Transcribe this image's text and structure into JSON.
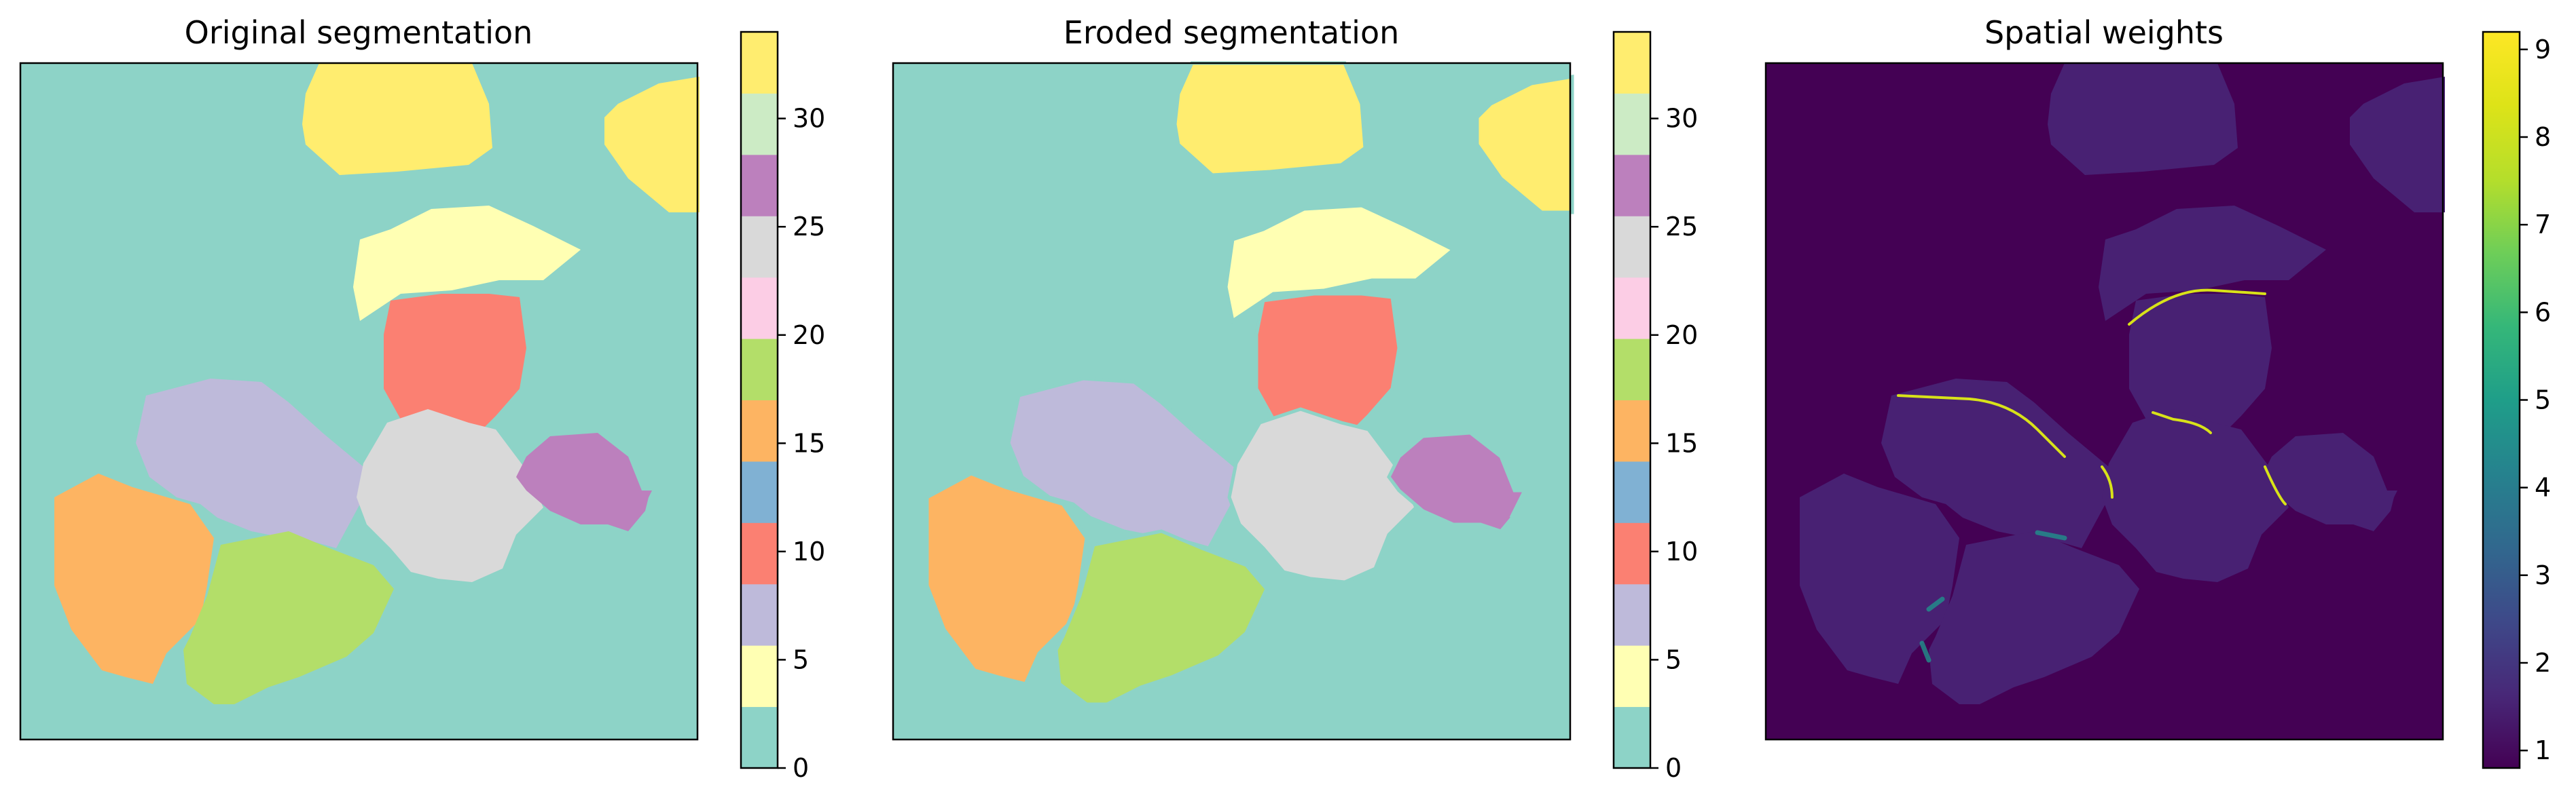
{
  "panels": [
    {
      "id": "original",
      "title": "Original segmentation",
      "colorbar": {
        "type": "discrete",
        "range": [
          0,
          34
        ],
        "ticks": [
          "0",
          "5",
          "10",
          "15",
          "20",
          "25",
          "30"
        ],
        "colors": [
          "#8dd3c7",
          "#ffffb3",
          "#bebada",
          "#fb8072",
          "#80b1d3",
          "#fdb462",
          "#b3de69",
          "#fccde5",
          "#d9d9d9",
          "#bc80bd",
          "#ccebc5",
          "#ffed6f"
        ]
      }
    },
    {
      "id": "eroded",
      "title": "Eroded segmentation",
      "colorbar": {
        "type": "discrete",
        "range": [
          0,
          34
        ],
        "ticks": [
          "0",
          "5",
          "10",
          "15",
          "20",
          "25",
          "30"
        ],
        "colors": [
          "#8dd3c7",
          "#ffffb3",
          "#bebada",
          "#fb8072",
          "#80b1d3",
          "#fdb462",
          "#b3de69",
          "#fccde5",
          "#d9d9d9",
          "#bc80bd",
          "#ccebc5",
          "#ffed6f"
        ]
      }
    },
    {
      "id": "weights",
      "title": "Spatial weights",
      "colorbar": {
        "type": "continuous",
        "colormap": "viridis",
        "range": [
          0.8,
          9.2
        ],
        "ticks": [
          "1",
          "2",
          "3",
          "4",
          "5",
          "6",
          "7",
          "8",
          "9"
        ]
      }
    }
  ],
  "colors": {
    "background_class": "#8dd3c7",
    "weights_background": "#440154",
    "weights_cell": "#482173",
    "weights_border": "#d8e219"
  }
}
